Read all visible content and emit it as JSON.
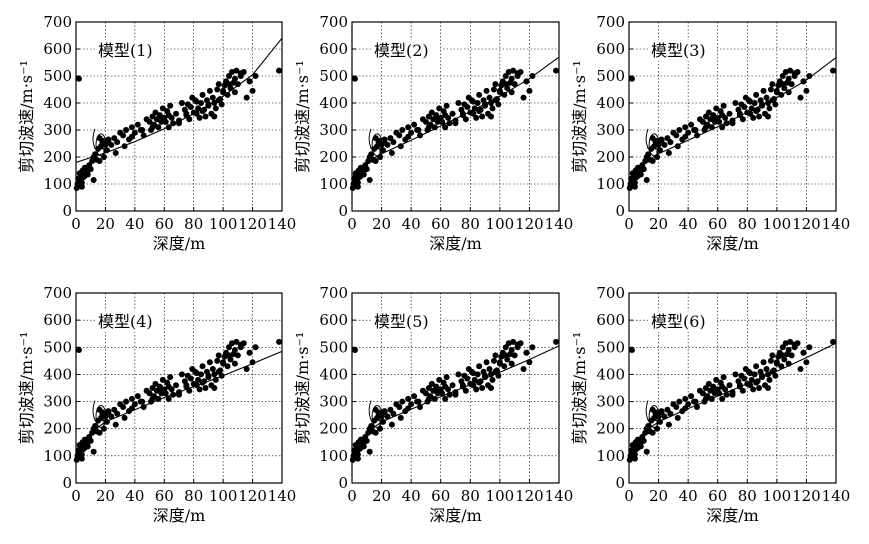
{
  "chart_data": [
    {
      "type": "scatter",
      "title": "模型(1)",
      "xlabel": "深度/m",
      "ylabel": "剪切波速/m·s⁻¹",
      "xlim": [
        0,
        140
      ],
      "ylim": [
        0,
        700
      ],
      "xticks": [
        "0",
        "20",
        "40",
        "60",
        "80",
        "100",
        "120",
        "140"
      ],
      "yticks": [
        "0",
        "100",
        "200",
        "300",
        "400",
        "500",
        "600",
        "700"
      ],
      "grid": true,
      "fit_line": {
        "x": [
          0,
          20,
          40,
          60,
          80,
          100,
          120,
          140
        ],
        "y": [
          180,
          215,
          257,
          305,
          360,
          425,
          505,
          640
        ]
      }
    },
    {
      "type": "scatter",
      "title": "模型(2)",
      "xlabel": "深度/m",
      "ylabel": "剪切波速/m·s⁻¹",
      "xlim": [
        0,
        140
      ],
      "ylim": [
        0,
        700
      ],
      "xticks": [
        "0",
        "20",
        "40",
        "60",
        "80",
        "100",
        "120",
        "140"
      ],
      "yticks": [
        "0",
        "100",
        "200",
        "300",
        "400",
        "500",
        "600",
        "700"
      ],
      "grid": true,
      "fit_line": {
        "x": [
          0,
          10,
          20,
          40,
          60,
          80,
          100,
          120,
          140
        ],
        "y": [
          125,
          180,
          212,
          262,
          315,
          368,
          425,
          490,
          570
        ]
      }
    },
    {
      "type": "scatter",
      "title": "模型(3)",
      "xlabel": "深度/m",
      "ylabel": "剪切波速/m·s⁻¹",
      "xlim": [
        0,
        140
      ],
      "ylim": [
        0,
        700
      ],
      "xticks": [
        "0",
        "20",
        "40",
        "60",
        "80",
        "100",
        "120",
        "140"
      ],
      "yticks": [
        "0",
        "100",
        "200",
        "300",
        "400",
        "500",
        "600",
        "700"
      ],
      "grid": true,
      "fit_line": {
        "x": [
          0,
          10,
          20,
          40,
          60,
          80,
          100,
          120,
          140
        ],
        "y": [
          120,
          178,
          212,
          262,
          312,
          365,
          420,
          485,
          568
        ]
      }
    },
    {
      "type": "scatter",
      "title": "模型(4)",
      "xlabel": "深度/m",
      "ylabel": "剪切波速/m·s⁻¹",
      "xlim": [
        0,
        140
      ],
      "ylim": [
        0,
        700
      ],
      "xticks": [
        "0",
        "20",
        "40",
        "60",
        "80",
        "100",
        "120",
        "140"
      ],
      "yticks": [
        "0",
        "100",
        "200",
        "300",
        "400",
        "500",
        "600",
        "700"
      ],
      "grid": true,
      "fit_line": {
        "x": [
          0,
          5,
          10,
          20,
          40,
          60,
          80,
          100,
          120,
          140
        ],
        "y": [
          95,
          150,
          185,
          225,
          270,
          315,
          355,
          395,
          440,
          485
        ]
      }
    },
    {
      "type": "scatter",
      "title": "模型(5)",
      "xlabel": "深度/m",
      "ylabel": "剪切波速/m·s⁻¹",
      "xlim": [
        0,
        140
      ],
      "ylim": [
        0,
        700
      ],
      "xticks": [
        "0",
        "20",
        "40",
        "60",
        "80",
        "100",
        "120",
        "140"
      ],
      "yticks": [
        "0",
        "100",
        "200",
        "300",
        "400",
        "500",
        "600",
        "700"
      ],
      "grid": true,
      "fit_line": {
        "x": [
          0,
          5,
          10,
          20,
          40,
          60,
          80,
          100,
          120,
          140
        ],
        "y": [
          100,
          152,
          185,
          225,
          272,
          318,
          362,
          408,
          455,
          505
        ]
      }
    },
    {
      "type": "scatter",
      "title": "模型(6)",
      "xlabel": "深度/m",
      "ylabel": "剪切波速/m·s⁻¹",
      "xlim": [
        0,
        140
      ],
      "ylim": [
        0,
        700
      ],
      "xticks": [
        "0",
        "20",
        "40",
        "60",
        "80",
        "100",
        "120",
        "140"
      ],
      "yticks": [
        "0",
        "100",
        "200",
        "300",
        "400",
        "500",
        "600",
        "700"
      ],
      "grid": true,
      "fit_line": {
        "x": [
          0,
          5,
          10,
          20,
          40,
          60,
          80,
          100,
          120,
          140
        ],
        "y": [
          100,
          152,
          186,
          226,
          274,
          320,
          366,
          412,
          462,
          515
        ]
      }
    }
  ],
  "scatter_points": {
    "note_shared": "The same measured data points appear in all six panels.",
    "x": [
      0.5,
      1,
      1.5,
      2,
      2.5,
      3,
      3.5,
      4,
      4.5,
      5,
      5.5,
      6,
      7,
      8,
      9,
      10,
      11,
      12,
      13,
      14,
      15,
      16,
      17,
      18,
      19,
      20,
      21,
      22,
      24,
      26,
      28,
      30,
      32,
      34,
      36,
      38,
      40,
      42,
      44,
      46,
      48,
      50,
      51,
      52,
      53,
      54,
      55,
      56,
      57,
      58,
      59,
      60,
      61,
      62,
      63,
      64,
      65,
      66,
      68,
      70,
      72,
      74,
      75,
      76,
      77,
      78,
      79,
      80,
      81,
      82,
      83,
      84,
      85,
      86,
      87,
      88,
      89,
      90,
      91,
      92,
      93,
      94,
      95,
      96,
      97,
      98,
      99,
      100,
      101,
      102,
      103,
      104,
      105,
      106,
      107,
      108,
      109,
      110,
      112,
      114,
      116,
      118,
      120,
      122,
      138,
      2,
      4,
      6,
      8,
      12,
      16,
      18,
      22,
      27,
      33,
      38,
      45,
      52,
      58,
      63,
      70,
      75,
      82,
      86,
      90,
      94,
      97,
      100,
      104,
      108,
      112,
      118
    ],
    "y": [
      85,
      100,
      120,
      95,
      140,
      110,
      130,
      105,
      150,
      125,
      140,
      160,
      145,
      135,
      170,
      155,
      185,
      200,
      210,
      190,
      230,
      270,
      240,
      255,
      200,
      245,
      225,
      260,
      245,
      270,
      255,
      290,
      280,
      300,
      265,
      310,
      290,
      320,
      300,
      280,
      340,
      330,
      300,
      350,
      320,
      365,
      340,
      310,
      355,
      330,
      380,
      345,
      330,
      370,
      310,
      390,
      345,
      325,
      360,
      335,
      400,
      375,
      355,
      395,
      340,
      385,
      420,
      365,
      410,
      360,
      380,
      345,
      400,
      430,
      375,
      350,
      410,
      390,
      445,
      360,
      420,
      400,
      380,
      450,
      470,
      415,
      395,
      440,
      465,
      480,
      430,
      500,
      455,
      515,
      475,
      440,
      520,
      470,
      500,
      515,
      420,
      480,
      445,
      500,
      520,
      490,
      90,
      130,
      150,
      115,
      185,
      260,
      265,
      215,
      240,
      275,
      300,
      310,
      340,
      355,
      325,
      360,
      405,
      370,
      395,
      350,
      410,
      445,
      470,
      490,
      510,
      480
    ],
    "point_radius_note": "filled black dots"
  },
  "annotation": {
    "label": "1"
  }
}
